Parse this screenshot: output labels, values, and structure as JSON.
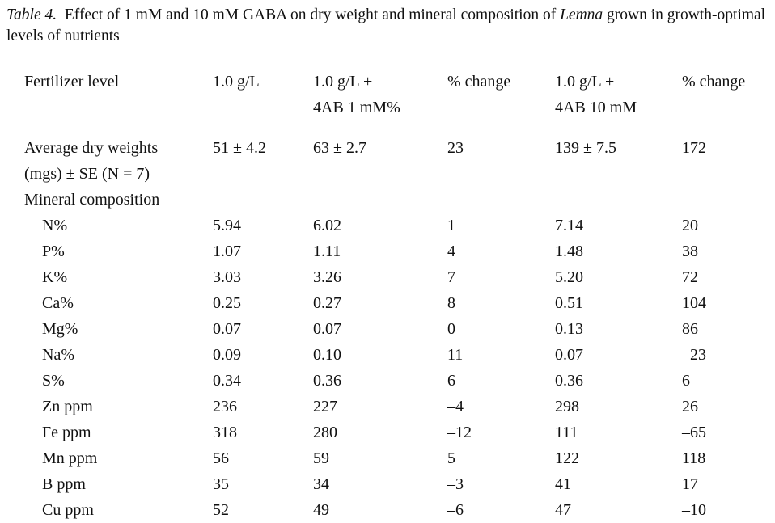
{
  "caption": {
    "label": "Table 4.",
    "text_before": "Effect of 1 mM and 10 mM GABA on dry weight and mineral composition of ",
    "species": "Lemna",
    "text_after": " grown in growth-optimal levels of nutrients"
  },
  "table": {
    "header": [
      [
        "Fertilizer level"
      ],
      [
        "1.0 g/L"
      ],
      [
        "1.0 g/L +",
        "4AB 1 mM%"
      ],
      [
        "% change"
      ],
      [
        "1.0 g/L +",
        "4AB 10 mM"
      ],
      [
        "% change"
      ]
    ],
    "dry_weight": {
      "label": [
        "Average dry weights",
        "(mgs) ± SE (N = 7)"
      ],
      "cells": [
        "51 ± 4.2",
        "63 ± 2.7",
        "23",
        "139 ± 7.5",
        "172"
      ]
    },
    "mineral_composition": {
      "label": "Mineral composition",
      "rows": [
        {
          "label": "N%",
          "cells": [
            "5.94",
            "6.02",
            "1",
            "7.14",
            "20"
          ]
        },
        {
          "label": "P%",
          "cells": [
            "1.07",
            "1.11",
            "4",
            "1.48",
            "38"
          ]
        },
        {
          "label": "K%",
          "cells": [
            "3.03",
            "3.26",
            "7",
            "5.20",
            "72"
          ]
        },
        {
          "label": "Ca%",
          "cells": [
            "0.25",
            "0.27",
            "8",
            "0.51",
            "104"
          ]
        },
        {
          "label": "Mg%",
          "cells": [
            "0.07",
            "0.07",
            "0",
            "0.13",
            "86"
          ]
        },
        {
          "label": "Na%",
          "cells": [
            "0.09",
            "0.10",
            "11",
            "0.07",
            "–23"
          ]
        },
        {
          "label": "S%",
          "cells": [
            "0.34",
            "0.36",
            "6",
            "0.36",
            "6"
          ]
        },
        {
          "label": "Zn ppm",
          "cells": [
            "236",
            "227",
            "–4",
            "298",
            "26"
          ]
        },
        {
          "label": "Fe ppm",
          "cells": [
            "318",
            "280",
            "–12",
            "111",
            "–65"
          ]
        },
        {
          "label": "Mn ppm",
          "cells": [
            "56",
            "59",
            "5",
            "122",
            "118"
          ]
        },
        {
          "label": "B ppm",
          "cells": [
            "35",
            "34",
            "–3",
            "41",
            "17"
          ]
        },
        {
          "label": "Cu ppm",
          "cells": [
            "52",
            "49",
            "–6",
            "47",
            "–10"
          ]
        }
      ]
    }
  }
}
